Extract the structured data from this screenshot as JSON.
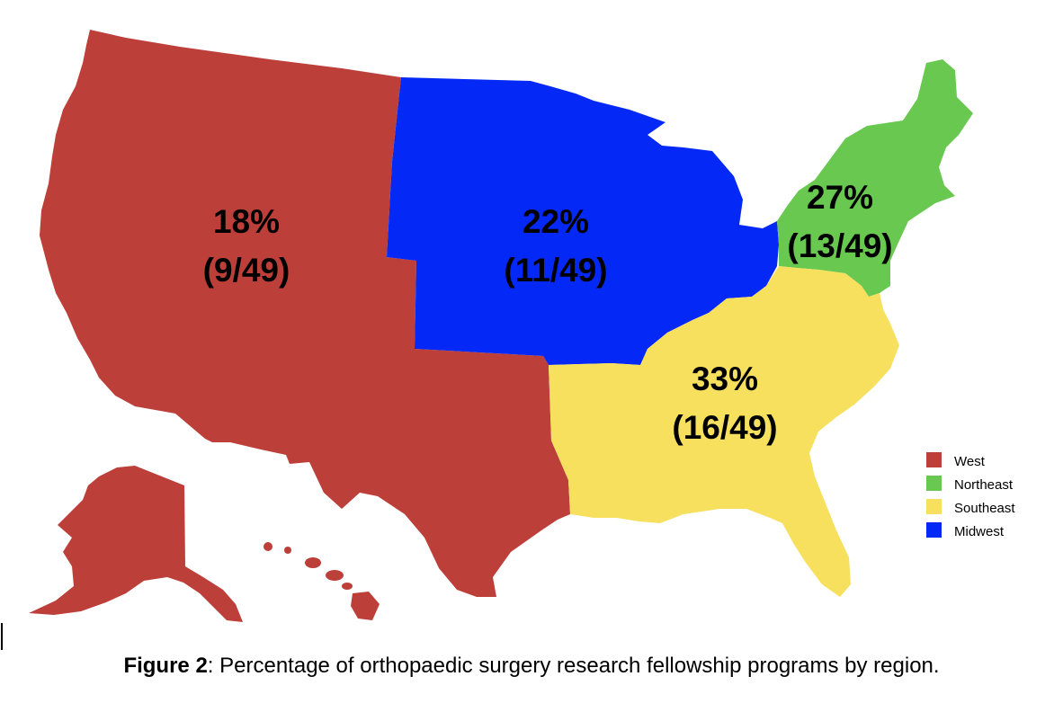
{
  "regions": [
    {
      "key": "west",
      "name": "West",
      "color": "#BD3F3A",
      "percent_label": "18%",
      "fraction_label": "(9/49)"
    },
    {
      "key": "midwest",
      "name": "Midwest",
      "color": "#0428F5",
      "percent_label": "22%",
      "fraction_label": "(11/49)"
    },
    {
      "key": "northeast",
      "name": "Northeast",
      "color": "#68C84F",
      "percent_label": "27%",
      "fraction_label": "(13/49)"
    },
    {
      "key": "southeast",
      "name": "Southeast",
      "color": "#F7E05E",
      "percent_label": "33%",
      "fraction_label": "(16/49)"
    }
  ],
  "legend": {
    "position": "bottom-right",
    "items": [
      {
        "label": "West",
        "color": "#BD3F3A"
      },
      {
        "label": "Northeast",
        "color": "#68C84F"
      },
      {
        "label": "Southeast",
        "color": "#F7E05E"
      },
      {
        "label": "Midwest",
        "color": "#0428F5"
      }
    ]
  },
  "caption": {
    "prefix": "Figure 2",
    "text": ": Percentage of orthopaedic surgery research fellowship programs by region."
  }
}
